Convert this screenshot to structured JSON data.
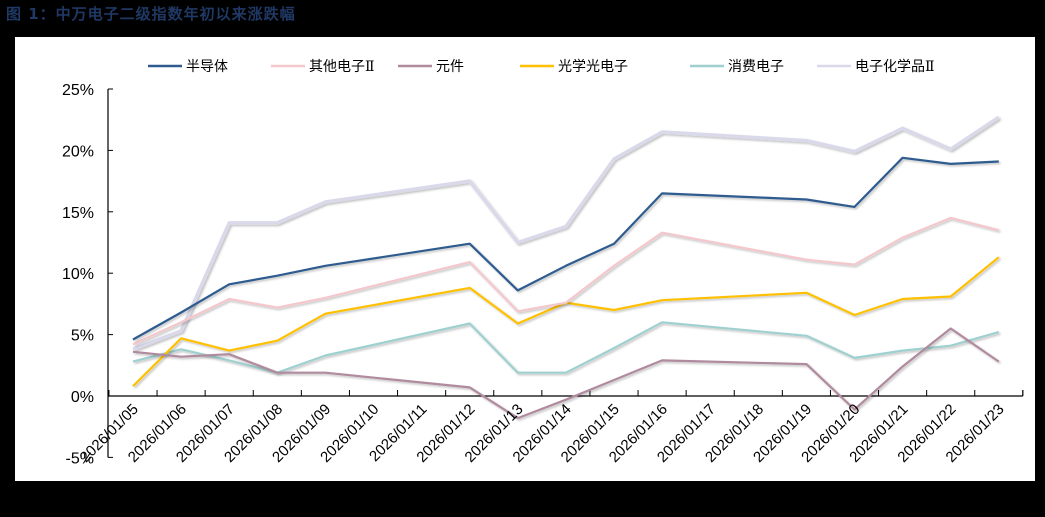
{
  "title": "图 1：中万电子二级指数年初以来涨跌幅",
  "legend": [
    {
      "label": "半导体",
      "color": "#2f5b8f"
    },
    {
      "label": "其他电子Ⅱ",
      "color": "#f4c7cc"
    },
    {
      "label": "元件",
      "color": "#b08a9e"
    },
    {
      "label": "光学光电子",
      "color": "#ffc000"
    },
    {
      "label": "消费电子",
      "color": "#9fd0d0"
    },
    {
      "label": "电子化学品Ⅱ",
      "color": "#d9d9ea"
    }
  ],
  "chart_data": {
    "type": "line",
    "title": "图 1：中万电子二级指数年初以来涨跌幅",
    "xlabel": "",
    "ylabel": "",
    "ylim": [
      -5,
      25
    ],
    "yticks": [
      "-5%",
      "0%",
      "5%",
      "10%",
      "15%",
      "20%",
      "25%"
    ],
    "grid": false,
    "legend_position": "top",
    "categories": [
      "2026/01/05",
      "2026/01/06",
      "2026/01/07",
      "2026/01/08",
      "2026/01/09",
      "2026/01/10",
      "2026/01/11",
      "2026/01/12",
      "2026/01/13",
      "2026/01/14",
      "2026/01/15",
      "2026/01/16",
      "2026/01/17",
      "2026/01/18",
      "2026/01/19",
      "2026/01/20",
      "2026/01/21",
      "2026/01/22",
      "2026/01/23"
    ],
    "data_dates": [
      "2026/01/05",
      "2026/01/06",
      "2026/01/07",
      "2026/01/08",
      "2026/01/09",
      "2026/01/12",
      "2026/01/13",
      "2026/01/14",
      "2026/01/15",
      "2026/01/16",
      "2026/01/19",
      "2026/01/20",
      "2026/01/21",
      "2026/01/22",
      "2026/01/23"
    ],
    "series": [
      {
        "name": "电子化学品Ⅱ",
        "color": "#d9d9ea",
        "values": [
          3.8,
          5.3,
          14.1,
          14.1,
          15.8,
          17.5,
          12.5,
          13.8,
          19.3,
          21.5,
          20.8,
          19.9,
          21.8,
          20.1,
          22.7
        ]
      },
      {
        "name": "消费电子",
        "color": "#9fd0d0",
        "values": [
          2.8,
          3.8,
          2.9,
          1.9,
          3.3,
          5.9,
          1.9,
          1.9,
          3.9,
          6.0,
          4.9,
          3.1,
          3.7,
          4.1,
          5.2
        ]
      },
      {
        "name": "光学光电子",
        "color": "#ffc000",
        "values": [
          0.8,
          4.7,
          3.7,
          4.5,
          6.7,
          8.8,
          5.9,
          7.6,
          7.0,
          7.8,
          8.4,
          6.6,
          7.9,
          8.1,
          11.3
        ]
      },
      {
        "name": "元件",
        "color": "#b08a9e",
        "values": [
          3.6,
          3.2,
          3.4,
          1.9,
          1.9,
          0.7,
          -1.8,
          -0.3,
          1.3,
          2.9,
          2.6,
          -1.1,
          2.4,
          5.5,
          2.8
        ]
      },
      {
        "name": "其他电子Ⅱ",
        "color": "#f4c7cc",
        "values": [
          4.2,
          6.0,
          7.9,
          7.2,
          8.0,
          10.9,
          6.9,
          7.6,
          10.6,
          13.3,
          11.1,
          10.7,
          12.9,
          14.5,
          13.5
        ]
      },
      {
        "name": "半导体",
        "color": "#2f5b8f",
        "values": [
          4.6,
          6.8,
          9.1,
          9.8,
          10.6,
          12.4,
          8.6,
          10.6,
          12.4,
          16.5,
          16.0,
          15.4,
          19.4,
          18.9,
          19.1
        ]
      }
    ]
  }
}
